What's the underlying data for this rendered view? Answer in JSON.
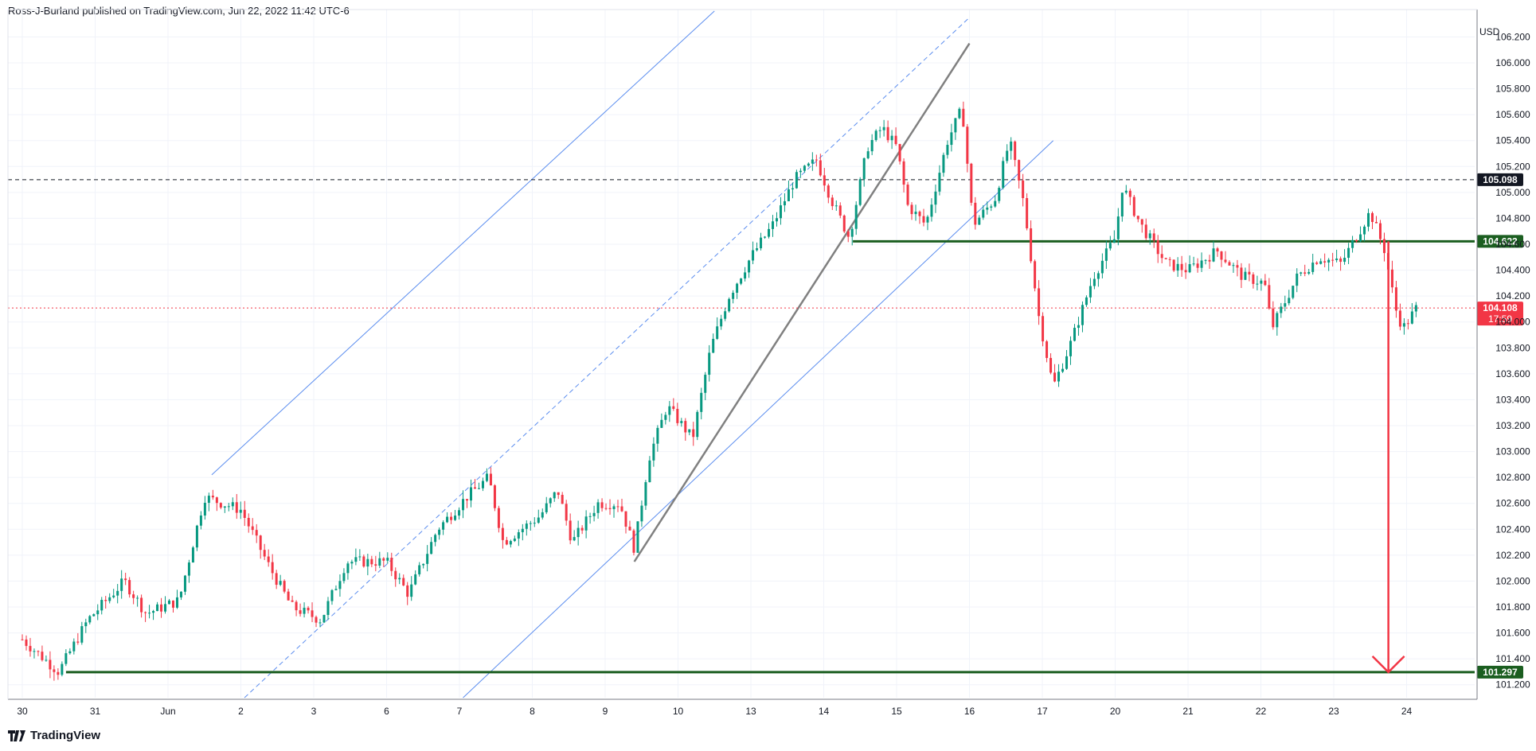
{
  "header": {
    "attribution": "Ross-J-Burland published on TradingView.com, Jun 22, 2022 11:42 UTC-6"
  },
  "footer": {
    "brand": "TradingView",
    "logo_icon": "tradingview-logo-icon"
  },
  "chart_data": {
    "type": "candlestick",
    "title": "",
    "currency": "USD",
    "ylim": [
      101.1,
      106.35
    ],
    "y_ticks": [
      "101.200",
      "101.400",
      "101.600",
      "101.800",
      "102.000",
      "102.200",
      "102.400",
      "102.600",
      "102.800",
      "103.000",
      "103.200",
      "103.400",
      "103.600",
      "103.800",
      "104.000",
      "104.200",
      "104.400",
      "104.600",
      "104.800",
      "105.000",
      "105.200",
      "105.400",
      "105.600",
      "105.800",
      "106.000",
      "106.200"
    ],
    "x_ticks": [
      "30",
      "31",
      "Jun",
      "2",
      "3",
      "6",
      "7",
      "8",
      "9",
      "10",
      "13",
      "14",
      "15",
      "16",
      "17",
      "20",
      "21",
      "22",
      "23",
      "24"
    ],
    "candle_color_up": "#089981",
    "candle_color_down": "#f23645",
    "key_points": [
      {
        "x": 0.0,
        "y": 101.55
      },
      {
        "x": 0.5,
        "y": 101.3
      },
      {
        "x": 0.9,
        "y": 101.7
      },
      {
        "x": 1.4,
        "y": 102.0
      },
      {
        "x": 1.7,
        "y": 101.75
      },
      {
        "x": 2.15,
        "y": 101.85
      },
      {
        "x": 2.5,
        "y": 102.65
      },
      {
        "x": 3.0,
        "y": 102.55
      },
      {
        "x": 3.4,
        "y": 102.1
      },
      {
        "x": 3.7,
        "y": 101.8
      },
      {
        "x": 4.1,
        "y": 101.7
      },
      {
        "x": 4.45,
        "y": 102.15
      },
      {
        "x": 5.0,
        "y": 102.15
      },
      {
        "x": 5.3,
        "y": 101.9
      },
      {
        "x": 5.7,
        "y": 102.4
      },
      {
        "x": 6.1,
        "y": 102.65
      },
      {
        "x": 6.4,
        "y": 102.8
      },
      {
        "x": 6.6,
        "y": 102.3
      },
      {
        "x": 7.1,
        "y": 102.5
      },
      {
        "x": 7.35,
        "y": 102.7
      },
      {
        "x": 7.55,
        "y": 102.3
      },
      {
        "x": 7.9,
        "y": 102.6
      },
      {
        "x": 8.2,
        "y": 102.6
      },
      {
        "x": 8.4,
        "y": 102.25
      },
      {
        "x": 8.6,
        "y": 102.95
      },
      {
        "x": 8.85,
        "y": 103.35
      },
      {
        "x": 9.2,
        "y": 103.1
      },
      {
        "x": 9.45,
        "y": 103.8
      },
      {
        "x": 9.7,
        "y": 104.2
      },
      {
        "x": 10.0,
        "y": 104.5
      },
      {
        "x": 10.3,
        "y": 104.75
      },
      {
        "x": 10.6,
        "y": 105.1
      },
      {
        "x": 10.9,
        "y": 105.25
      },
      {
        "x": 11.1,
        "y": 104.95
      },
      {
        "x": 11.35,
        "y": 104.65
      },
      {
        "x": 11.6,
        "y": 105.35
      },
      {
        "x": 11.8,
        "y": 105.5
      },
      {
        "x": 12.0,
        "y": 105.35
      },
      {
        "x": 12.15,
        "y": 104.9
      },
      {
        "x": 12.4,
        "y": 104.75
      },
      {
        "x": 12.7,
        "y": 105.4
      },
      {
        "x": 12.9,
        "y": 105.65
      },
      {
        "x": 13.05,
        "y": 104.75
      },
      {
        "x": 13.35,
        "y": 104.95
      },
      {
        "x": 13.55,
        "y": 105.4
      },
      {
        "x": 13.75,
        "y": 104.9
      },
      {
        "x": 13.95,
        "y": 104.05
      },
      {
        "x": 14.15,
        "y": 103.5
      },
      {
        "x": 14.4,
        "y": 103.85
      },
      {
        "x": 14.7,
        "y": 104.35
      },
      {
        "x": 15.0,
        "y": 104.65
      },
      {
        "x": 15.1,
        "y": 105.05
      },
      {
        "x": 15.35,
        "y": 104.75
      },
      {
        "x": 15.7,
        "y": 104.45
      },
      {
        "x": 16.0,
        "y": 104.4
      },
      {
        "x": 16.4,
        "y": 104.55
      },
      {
        "x": 16.75,
        "y": 104.35
      },
      {
        "x": 17.05,
        "y": 104.3
      },
      {
        "x": 17.15,
        "y": 103.95
      },
      {
        "x": 17.5,
        "y": 104.35
      },
      {
        "x": 17.8,
        "y": 104.5
      },
      {
        "x": 18.1,
        "y": 104.45
      },
      {
        "x": 18.35,
        "y": 104.7
      },
      {
        "x": 18.5,
        "y": 104.85
      },
      {
        "x": 18.7,
        "y": 104.55
      },
      {
        "x": 18.85,
        "y": 104.1
      },
      {
        "x": 18.95,
        "y": 103.95
      },
      {
        "x": 19.15,
        "y": 104.12
      }
    ],
    "levels": [
      {
        "value": 105.098,
        "label": "105.098",
        "color": "#131722",
        "style": "dashed"
      },
      {
        "value": 104.622,
        "label": "104.622",
        "color": "#1b5e20",
        "style": "solid"
      },
      {
        "value": 101.297,
        "label": "101.297",
        "color": "#1b5e20",
        "style": "solid"
      },
      {
        "value": 104.108,
        "label": "104.108",
        "sublabel": "17:59",
        "color": "#f23645",
        "style": "dotted"
      }
    ],
    "trendlines": [
      {
        "from": {
          "x": 2.6,
          "y": 102.82
        },
        "to": {
          "x": 9.5,
          "y": 106.4
        },
        "color": "#5b8def",
        "style": "solid"
      },
      {
        "from": {
          "x": 3.05,
          "y": 101.1
        },
        "to": {
          "x": 13.0,
          "y": 106.35
        },
        "color": "#5b8def",
        "style": "dashed"
      },
      {
        "from": {
          "x": 6.05,
          "y": 101.1
        },
        "to": {
          "x": 14.15,
          "y": 105.4
        },
        "color": "#5b8def",
        "style": "solid"
      },
      {
        "from": {
          "x": 8.4,
          "y": 102.15
        },
        "to": {
          "x": 13.0,
          "y": 106.15
        },
        "color": "#808080",
        "style": "solid"
      }
    ],
    "target_arrow": {
      "from": 104.622,
      "to": 101.297,
      "x": 18.75,
      "color": "#f23645"
    }
  }
}
